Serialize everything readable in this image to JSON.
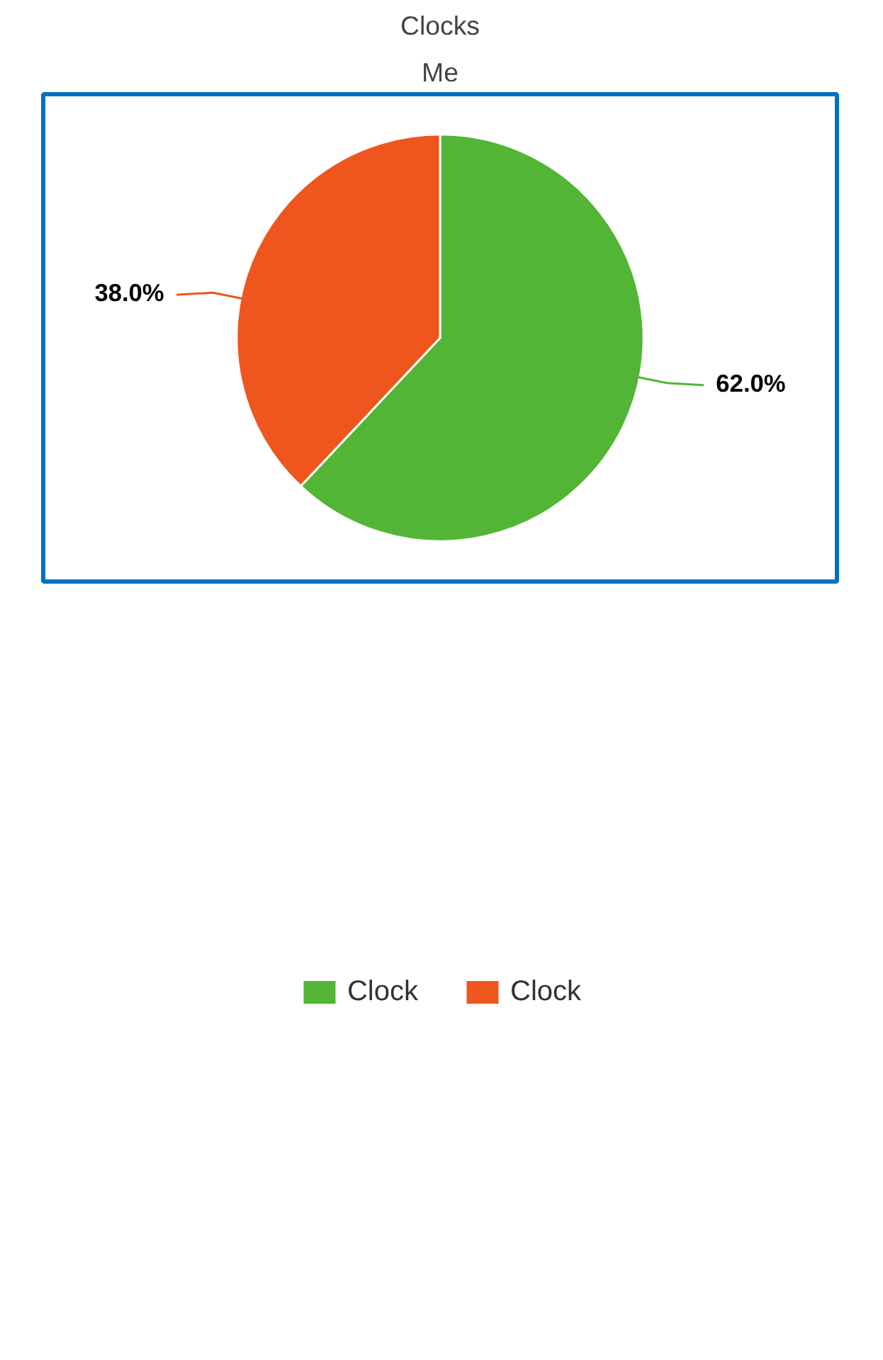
{
  "chart_data": {
    "type": "pie",
    "title": "Clocks",
    "subtitle": "Me",
    "categories": [
      "Clock",
      "Clock"
    ],
    "values": [
      62,
      38
    ],
    "colors": [
      "#52b535",
      "#ee561d"
    ],
    "value_labels": [
      "62.0%",
      "38.0%"
    ],
    "legend": "bottom"
  }
}
